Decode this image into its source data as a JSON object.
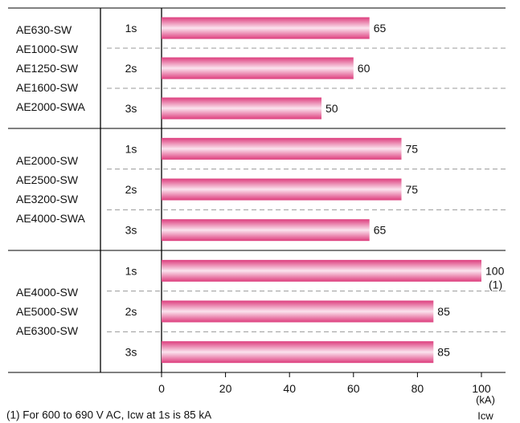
{
  "chart_data": {
    "type": "bar",
    "orientation": "horizontal",
    "groups": [
      {
        "models": [
          "AE630-SW",
          "AE1000-SW",
          "AE1250-SW",
          "AE1600-SW",
          "AE2000-SWA"
        ],
        "bars": [
          {
            "duration": "1s",
            "value": 65,
            "note": ""
          },
          {
            "duration": "2s",
            "value": 60,
            "note": ""
          },
          {
            "duration": "3s",
            "value": 50,
            "note": ""
          }
        ]
      },
      {
        "models": [
          "AE2000-SW",
          "AE2500-SW",
          "AE3200-SW",
          "AE4000-SWA"
        ],
        "bars": [
          {
            "duration": "1s",
            "value": 75,
            "note": ""
          },
          {
            "duration": "2s",
            "value": 75,
            "note": ""
          },
          {
            "duration": "3s",
            "value": 65,
            "note": ""
          }
        ]
      },
      {
        "models": [
          "AE4000-SW",
          "AE5000-SW",
          "AE6300-SW"
        ],
        "bars": [
          {
            "duration": "1s",
            "value": 100,
            "note": "(1)"
          },
          {
            "duration": "2s",
            "value": 85,
            "note": ""
          },
          {
            "duration": "3s",
            "value": 85,
            "note": ""
          }
        ]
      }
    ],
    "x_ticks": [
      0,
      20,
      40,
      60,
      80,
      100
    ],
    "xlim": [
      0,
      100
    ],
    "x_unit": "(kA)",
    "x_name": "Icw",
    "footnote": "(1) For 600 to 690 V AC, Icw at 1s is 85 kA",
    "colors": {
      "bar_edge": "#dd3d7d",
      "bar_center": "#fbe3ee",
      "grid": "#999999"
    }
  }
}
